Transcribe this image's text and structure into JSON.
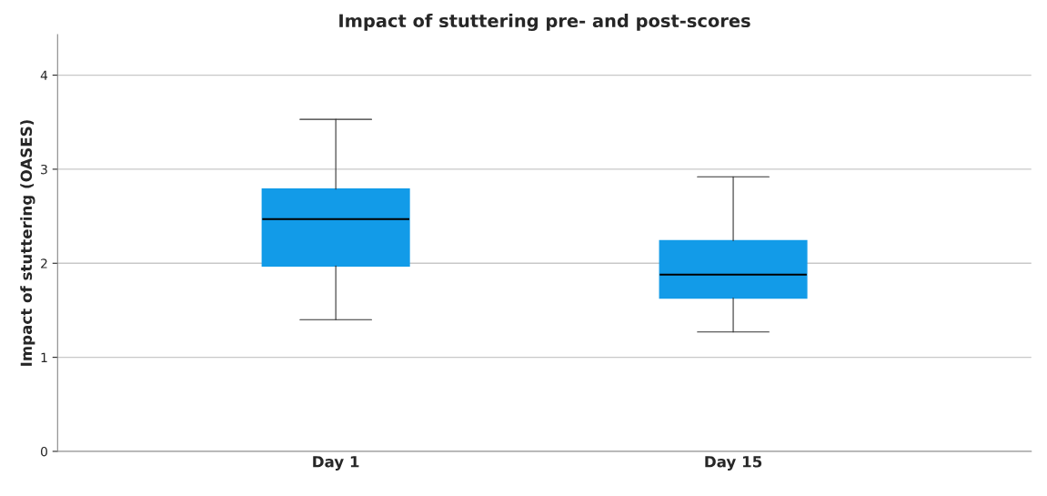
{
  "chart_data": {
    "type": "box",
    "title": "Impact of stuttering pre- and post-scores",
    "ylabel": "Impact of stuttering (OASES)",
    "categories": [
      "Day 1",
      "Day 15"
    ],
    "series": [
      {
        "color": "#129be8",
        "boxes": [
          {
            "low": 1.4,
            "q1": 1.97,
            "median": 2.47,
            "q3": 2.79,
            "high": 3.53
          },
          {
            "low": 1.27,
            "q1": 1.63,
            "median": 1.88,
            "q3": 2.24,
            "high": 2.92
          }
        ]
      }
    ],
    "ylim": [
      0,
      4.43
    ],
    "yticks": [
      0,
      1,
      2,
      3,
      4
    ],
    "grid": "y"
  }
}
